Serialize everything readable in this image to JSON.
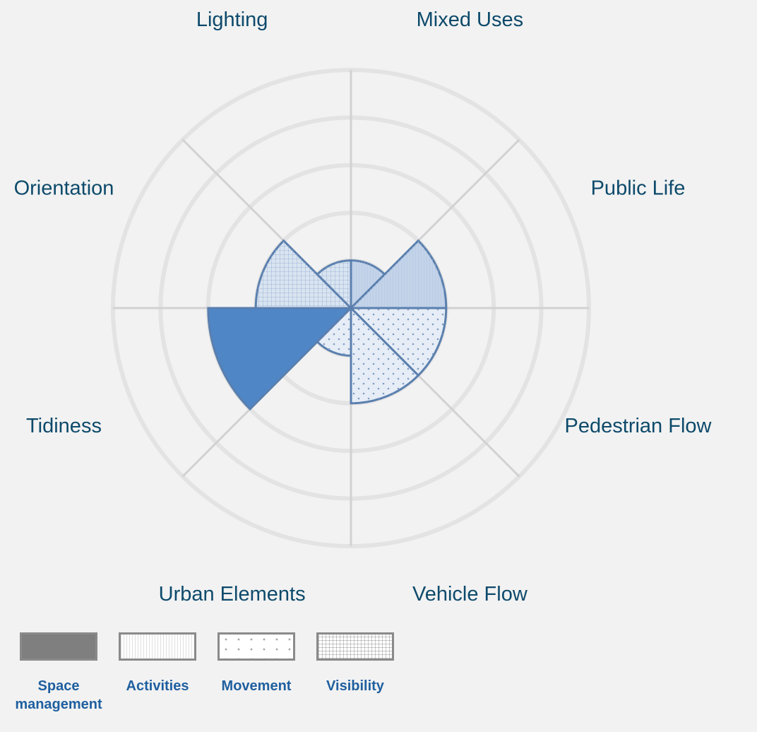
{
  "chart_data": {
    "type": "polar_area",
    "categories": [
      "Mixed Uses",
      "Public Life",
      "Pedestrian Flow",
      "Vehicle Flow",
      "Urban Elements",
      "Tidiness",
      "Orientation",
      "Lighting"
    ],
    "series": [
      {
        "name": "Space management",
        "color": "#4f86c6",
        "pattern": "solid",
        "values": [
          null,
          null,
          null,
          null,
          null,
          3,
          null,
          null
        ]
      },
      {
        "name": "Activities",
        "color": "#c3d3e9",
        "pattern": "lines",
        "values": [
          1,
          2,
          null,
          null,
          null,
          null,
          null,
          null
        ]
      },
      {
        "name": "Movement",
        "color": "#e6edf6",
        "pattern": "dots",
        "values": [
          null,
          null,
          2,
          2,
          1,
          null,
          null,
          null
        ]
      },
      {
        "name": "Visibility",
        "color": "#d9e4f1",
        "pattern": "grid",
        "values": [
          null,
          null,
          null,
          null,
          null,
          null,
          2,
          1
        ]
      }
    ],
    "rlim": [
      0,
      5
    ],
    "rticks": [
      1,
      2,
      3,
      4,
      5
    ],
    "grid": true
  }
}
